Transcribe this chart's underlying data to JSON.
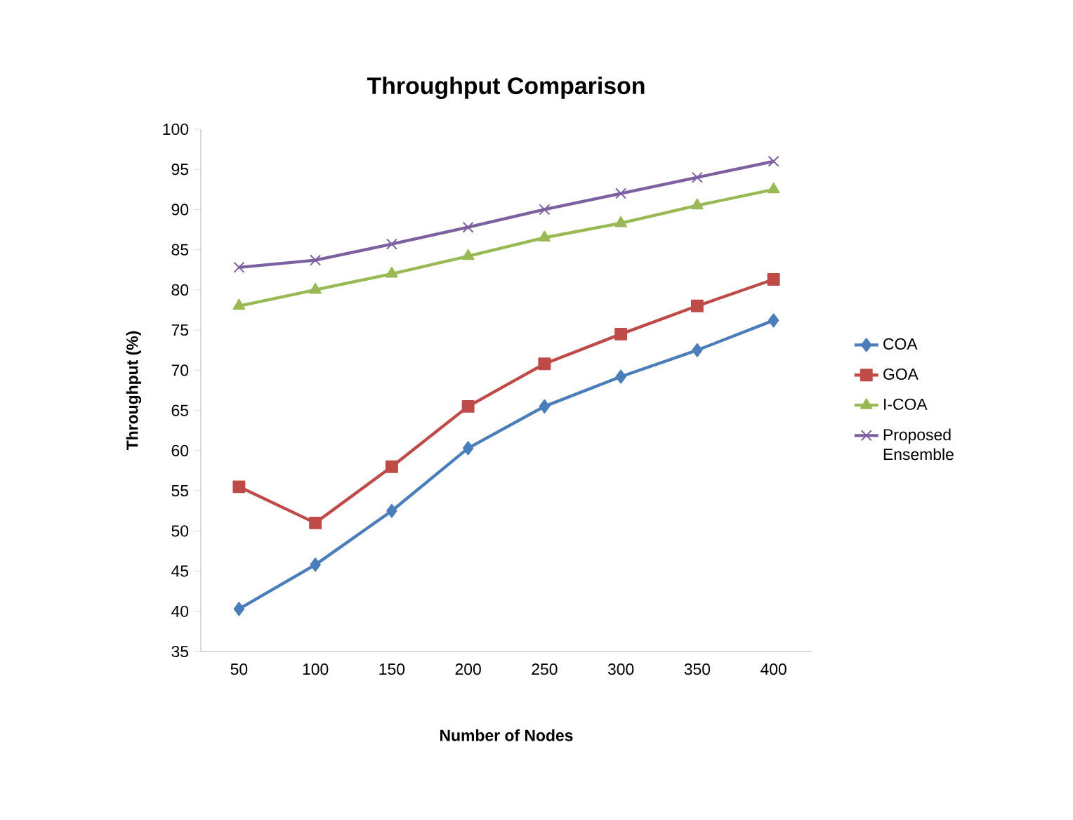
{
  "chart_data": {
    "type": "line",
    "title": "Throughput Comparison",
    "xlabel": "Number of Nodes",
    "ylabel": "Throughput (%)",
    "categories": [
      "50",
      "100",
      "150",
      "200",
      "250",
      "300",
      "350",
      "400"
    ],
    "ylim": [
      35,
      100
    ],
    "yticks": [
      35,
      40,
      45,
      50,
      55,
      60,
      65,
      70,
      75,
      80,
      85,
      90,
      95,
      100
    ],
    "grid": false,
    "legend": "right",
    "line_style": "solid",
    "series": [
      {
        "name": "COA",
        "color": "#4a7ebb",
        "marker": "diamond",
        "values": [
          40.3,
          45.8,
          52.5,
          60.3,
          65.5,
          69.2,
          72.5,
          76.2
        ]
      },
      {
        "name": "GOA",
        "color": "#be4b48",
        "marker": "square",
        "values": [
          55.5,
          51.0,
          58.0,
          65.5,
          70.8,
          74.5,
          78.0,
          81.3
        ]
      },
      {
        "name": "I-COA",
        "color": "#98b954",
        "marker": "triangle",
        "values": [
          78.0,
          80.0,
          82.0,
          84.2,
          86.5,
          88.3,
          90.5,
          92.5
        ]
      },
      {
        "name": "Proposed Ensemble",
        "color": "#7d60a0",
        "marker": "cross",
        "values": [
          82.8,
          83.7,
          85.7,
          87.8,
          90.0,
          92.0,
          94.0,
          96.0
        ]
      }
    ]
  }
}
